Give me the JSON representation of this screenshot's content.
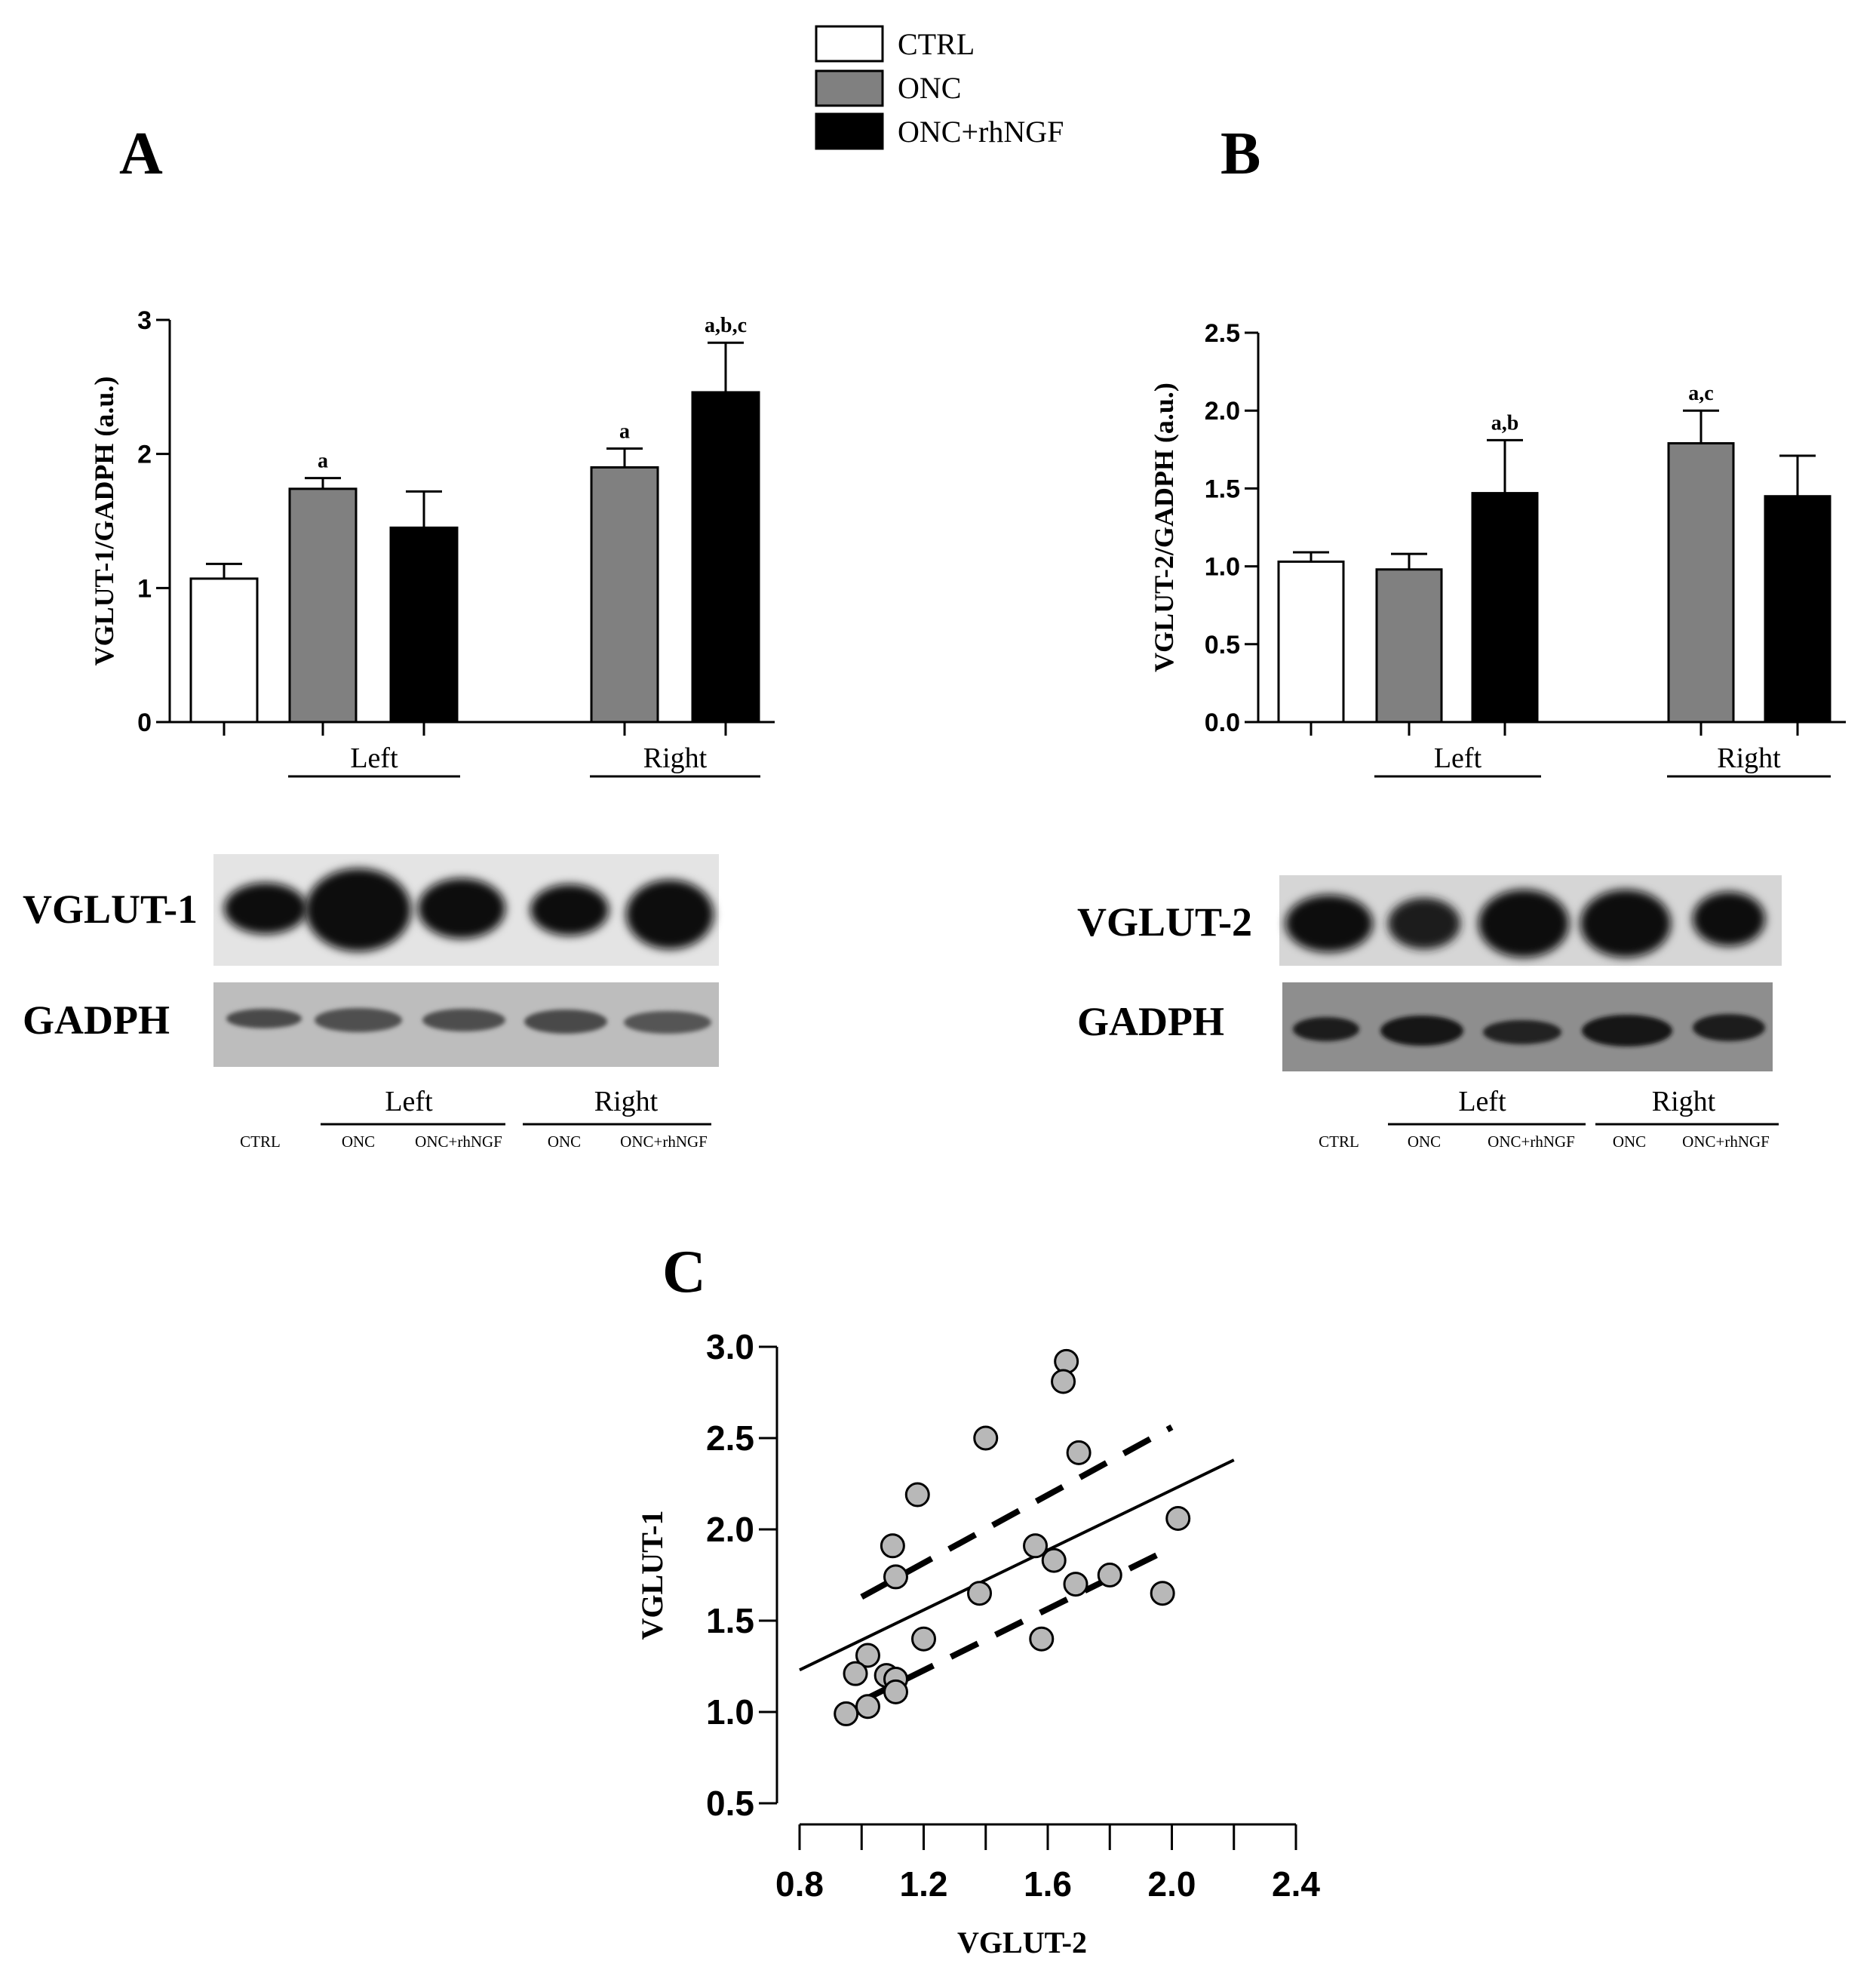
{
  "legend": {
    "entries": [
      {
        "label": "CTRL",
        "color": "#ffffff"
      },
      {
        "label": "ONC",
        "color": "#808080"
      },
      {
        "label": "ONC+rhNGF",
        "color": "#000000"
      }
    ]
  },
  "panels": {
    "A": {
      "letter": "A"
    },
    "B": {
      "letter": "B"
    },
    "C": {
      "letter": "C"
    }
  },
  "blots": {
    "A": {
      "band_labels": [
        "VGLUT-1",
        "GADPH"
      ],
      "group_labels": [
        "Left",
        "Right"
      ],
      "lane_labels": [
        "CTRL",
        "ONC",
        "ONC+rhNGF",
        "ONC",
        "ONC+rhNGF"
      ]
    },
    "B": {
      "band_labels": [
        "VGLUT-2",
        "GADPH"
      ],
      "group_labels": [
        "Left",
        "Right"
      ],
      "lane_labels": [
        "CTRL",
        "ONC",
        "ONC+rhNGF",
        "ONC",
        "ONC+rhNGF"
      ]
    }
  },
  "chart_data": [
    {
      "id": "A",
      "type": "bar",
      "ylabel": "VGLUT-1/GADPH (a.u.)",
      "ylim": [
        0,
        3
      ],
      "yticks": [
        "0",
        "1",
        "2",
        "3"
      ],
      "group_labels": [
        "Left",
        "Right"
      ],
      "bars": [
        {
          "category": "CTRL",
          "value": 1.07,
          "error": 0.11,
          "annotation": ""
        },
        {
          "category": "ONC",
          "group": "Left",
          "value": 1.74,
          "error": 0.08,
          "annotation": "a"
        },
        {
          "category": "ONC+rhNGF",
          "group": "Left",
          "value": 1.45,
          "error": 0.27,
          "annotation": ""
        },
        {
          "category": "ONC",
          "group": "Right",
          "value": 1.9,
          "error": 0.14,
          "annotation": "a"
        },
        {
          "category": "ONC+rhNGF",
          "group": "Right",
          "value": 2.46,
          "error": 0.37,
          "annotation": "a,b,c"
        }
      ]
    },
    {
      "id": "B",
      "type": "bar",
      "ylabel": "VGLUT-2/GADPH (a.u.)",
      "ylim": [
        0,
        2.5
      ],
      "yticks": [
        "0.0",
        "0.5",
        "1.0",
        "1.5",
        "2.0",
        "2.5"
      ],
      "group_labels": [
        "Left",
        "Right"
      ],
      "bars": [
        {
          "category": "CTRL",
          "value": 1.03,
          "error": 0.06,
          "annotation": ""
        },
        {
          "category": "ONC",
          "group": "Left",
          "value": 0.98,
          "error": 0.1,
          "annotation": ""
        },
        {
          "category": "ONC+rhNGF",
          "group": "Left",
          "value": 1.47,
          "error": 0.34,
          "annotation": "a,b"
        },
        {
          "category": "ONC",
          "group": "Right",
          "value": 1.79,
          "error": 0.21,
          "annotation": "a,c"
        },
        {
          "category": "ONC+rhNGF",
          "group": "Right",
          "value": 1.45,
          "error": 0.26,
          "annotation": ""
        }
      ]
    },
    {
      "id": "C",
      "type": "scatter",
      "xlabel": "VGLUT-2",
      "ylabel": "VGLUT-1",
      "xlim": [
        0.8,
        2.4
      ],
      "ylim": [
        0.5,
        3.0
      ],
      "xticks": [
        "0.8",
        "1.2",
        "1.6",
        "2.0",
        "2.4"
      ],
      "yticks": [
        "0.5",
        "1.0",
        "1.5",
        "2.0",
        "2.5",
        "3.0"
      ],
      "points": [
        [
          1.66,
          2.92
        ],
        [
          1.65,
          2.81
        ],
        [
          1.4,
          2.5
        ],
        [
          1.7,
          2.42
        ],
        [
          1.18,
          2.19
        ],
        [
          2.02,
          2.06
        ],
        [
          1.1,
          1.91
        ],
        [
          1.56,
          1.91
        ],
        [
          1.62,
          1.83
        ],
        [
          1.11,
          1.74
        ],
        [
          1.8,
          1.75
        ],
        [
          1.69,
          1.7
        ],
        [
          1.38,
          1.65
        ],
        [
          1.97,
          1.65
        ],
        [
          1.2,
          1.4
        ],
        [
          1.58,
          1.4
        ],
        [
          1.02,
          1.31
        ],
        [
          0.98,
          1.21
        ],
        [
          1.08,
          1.2
        ],
        [
          1.11,
          1.18
        ],
        [
          1.11,
          1.11
        ],
        [
          1.02,
          1.03
        ],
        [
          0.95,
          0.99
        ]
      ],
      "regression": {
        "x": [
          0.8,
          2.2
        ],
        "y": [
          1.23,
          2.38
        ]
      },
      "confidence_band": {
        "upper": {
          "x": [
            1.0,
            2.0
          ],
          "y": [
            1.63,
            2.56
          ]
        },
        "lower": {
          "x": [
            1.0,
            2.0
          ],
          "y": [
            1.06,
            1.9
          ]
        }
      }
    }
  ]
}
